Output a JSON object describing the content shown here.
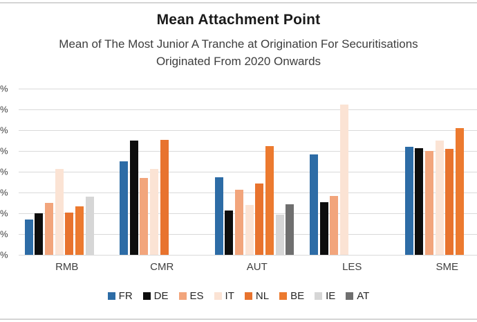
{
  "title": "Mean Attachment Point",
  "subtitle_lines": [
    "Mean of The Most Junior A Tranche at Origination For Securitisations",
    "Originated From 2020 Onwards"
  ],
  "y_axis": {
    "tick_labels_visible": [
      "%",
      "%",
      "%",
      "%",
      "%",
      "%",
      "%",
      "%",
      "%"
    ],
    "note_visible": "numeric part of tick labels clipped at left edge of image"
  },
  "chart_data": {
    "type": "bar",
    "title": "Mean Attachment Point",
    "subtitle": "Mean of The Most Junior A Tranche at Origination For Securitisations Originated From 2020 Onwards",
    "categories": [
      "RMB",
      "CMR",
      "AUT",
      "LES",
      "SME"
    ],
    "series": [
      {
        "name": "FR",
        "color": "#2d6ca6",
        "values": [
          1.7,
          4.5,
          3.75,
          4.85,
          5.2
        ]
      },
      {
        "name": "DE",
        "color": "#0d0d0d",
        "values": [
          2.0,
          5.5,
          2.15,
          2.55,
          5.15
        ]
      },
      {
        "name": "ES",
        "color": "#f2a57c",
        "values": [
          2.5,
          3.7,
          3.15,
          2.85,
          5.0
        ]
      },
      {
        "name": "IT",
        "color": "#fbe3d4",
        "values": [
          4.15,
          4.15,
          2.4,
          7.25,
          5.5
        ]
      },
      {
        "name": "NL",
        "color": "#e8732e",
        "values": [
          2.05,
          5.55,
          3.45,
          null,
          5.1
        ]
      },
      {
        "name": "BE",
        "color": "#ec7a2f",
        "values": [
          2.35,
          null,
          5.25,
          null,
          6.1
        ]
      },
      {
        "name": "IE",
        "color": "#d6d6d6",
        "values": [
          2.8,
          null,
          1.95,
          null,
          null
        ]
      },
      {
        "name": "AT",
        "color": "#6f6f6f",
        "values": [
          null,
          null,
          2.45,
          null,
          null
        ]
      }
    ],
    "ylim": [
      0,
      8
    ],
    "y_gridline_step": 1,
    "value_unit": "%",
    "grid": true,
    "legend_position": "bottom",
    "legend_entries": [
      "FR",
      "DE",
      "ES",
      "IT",
      "NL",
      "BE",
      "IE",
      "AT"
    ]
  }
}
